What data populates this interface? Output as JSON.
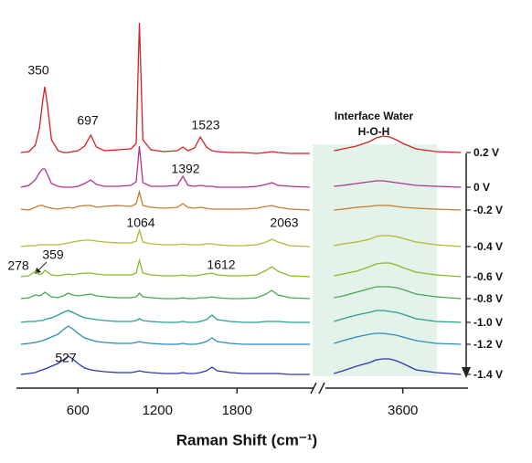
{
  "chart_data": {
    "type": "line",
    "xlabel": "Raman Shift (cm⁻¹)",
    "panel_title": [
      "Interface Water",
      "H-O-H"
    ],
    "xlim": [
      150,
      4110
    ],
    "axis_break": [
      2380,
      3030
    ],
    "xticks": [
      600,
      1200,
      1800,
      3600
    ],
    "ylim": [
      0,
      400
    ],
    "x": [
      170,
      230,
      278,
      310,
      335,
      350,
      370,
      400,
      450,
      490,
      527,
      560,
      600,
      650,
      697,
      740,
      800,
      900,
      1000,
      1040,
      1064,
      1090,
      1150,
      1250,
      1350,
      1392,
      1430,
      1480,
      1523,
      1570,
      1612,
      1650,
      1750,
      1850,
      1950,
      2020,
      2063,
      2110,
      2200,
      2350,
      2380,
      3080,
      3150,
      3250,
      3350,
      3400,
      3450,
      3500,
      3550,
      3600,
      3700,
      3850,
      4040
    ],
    "series": [
      {
        "name": "0.2 V",
        "color": "#d42222",
        "values": [
          248,
          249,
          256,
          275,
          305,
          320,
          300,
          262,
          250,
          248,
          248,
          249,
          250,
          255,
          267,
          254,
          250,
          251,
          252,
          258,
          390,
          262,
          251,
          249,
          250,
          254,
          250,
          253,
          265,
          254,
          250,
          249,
          248,
          248,
          247,
          248,
          249,
          248,
          247,
          247,
          null,
          250,
          252,
          255,
          260,
          264,
          266,
          265,
          262,
          258,
          252,
          249,
          248
        ]
      },
      {
        "name": "0 V",
        "color": "#b0338a",
        "values": [
          210,
          212,
          218,
          226,
          230,
          230,
          224,
          214,
          211,
          210,
          210,
          210,
          211,
          214,
          218,
          213,
          211,
          211,
          212,
          216,
          255,
          215,
          211,
          211,
          212,
          222,
          212,
          211,
          212,
          211,
          211,
          210,
          210,
          210,
          211,
          213,
          215,
          212,
          211,
          210,
          null,
          211,
          212,
          214,
          216,
          217,
          217,
          216,
          215,
          214,
          212,
          211,
          210
        ]
      },
      {
        "name": "-0.2 V",
        "color": "#c87a30",
        "values": [
          186,
          185,
          188,
          190,
          190,
          189,
          188,
          187,
          186,
          187,
          188,
          187,
          189,
          190,
          190,
          188,
          189,
          190,
          189,
          192,
          205,
          190,
          188,
          187,
          188,
          192,
          188,
          187,
          188,
          187,
          186,
          186,
          186,
          186,
          187,
          189,
          190,
          188,
          186,
          185,
          null,
          185,
          186,
          188,
          189,
          190,
          190,
          190,
          189,
          188,
          187,
          186,
          185
        ]
      },
      {
        "name": "-0.4 V",
        "color": "#b4b832",
        "values": [
          145,
          146,
          146,
          147,
          147,
          147,
          147,
          147,
          147,
          148,
          149,
          150,
          151,
          152,
          152,
          151,
          150,
          149,
          149,
          151,
          163,
          150,
          148,
          147,
          147,
          148,
          147,
          147,
          147,
          148,
          148,
          147,
          146,
          146,
          147,
          150,
          153,
          150,
          146,
          145,
          null,
          146,
          148,
          150,
          153,
          156,
          157,
          157,
          156,
          154,
          150,
          147,
          145
        ]
      },
      {
        "name": "-0.6 V",
        "color": "#88bb2a",
        "values": [
          112,
          113,
          118,
          114,
          116,
          119,
          117,
          114,
          113,
          114,
          115,
          114,
          115,
          116,
          116,
          115,
          114,
          114,
          114,
          116,
          130,
          116,
          114,
          113,
          113,
          114,
          113,
          113,
          114,
          115,
          116,
          114,
          113,
          113,
          114,
          119,
          123,
          118,
          113,
          112,
          null,
          113,
          115,
          118,
          123,
          126,
          127,
          127,
          125,
          122,
          117,
          114,
          112
        ]
      },
      {
        "name": "-0.8 V",
        "color": "#48a852",
        "values": [
          88,
          89,
          92,
          91,
          93,
          95,
          93,
          90,
          89,
          91,
          94,
          92,
          91,
          92,
          93,
          91,
          90,
          89,
          89,
          90,
          94,
          90,
          89,
          88,
          88,
          89,
          88,
          88,
          89,
          89,
          90,
          89,
          88,
          88,
          89,
          93,
          97,
          92,
          89,
          88,
          null,
          89,
          91,
          95,
          99,
          101,
          101,
          101,
          100,
          98,
          93,
          90,
          88
        ]
      },
      {
        "name": "-1.0 V",
        "color": "#28a08e",
        "values": [
          62,
          63,
          63,
          64,
          64,
          65,
          66,
          67,
          70,
          73,
          75,
          73,
          70,
          67,
          66,
          65,
          64,
          63,
          63,
          64,
          66,
          64,
          63,
          62,
          62,
          63,
          62,
          62,
          63,
          65,
          70,
          65,
          63,
          62,
          62,
          63,
          63,
          63,
          62,
          62,
          null,
          63,
          66,
          70,
          73,
          75,
          75,
          74,
          73,
          71,
          66,
          63,
          62
        ]
      },
      {
        "name": "-1.2 V",
        "color": "#2a8cba",
        "values": [
          38,
          39,
          40,
          41,
          42,
          43,
          44,
          46,
          49,
          54,
          58,
          55,
          50,
          45,
          43,
          41,
          40,
          39,
          39,
          40,
          41,
          40,
          39,
          38,
          38,
          39,
          38,
          38,
          39,
          41,
          45,
          41,
          39,
          38,
          38,
          38,
          38,
          38,
          38,
          38,
          null,
          39,
          42,
          46,
          49,
          50,
          50,
          49,
          48,
          46,
          42,
          39,
          38
        ]
      },
      {
        "name": "-1.4 V",
        "color": "#2838b2",
        "values": [
          5,
          6,
          7,
          9,
          10,
          11,
          12,
          14,
          17,
          21,
          25,
          22,
          17,
          12,
          10,
          9,
          8,
          7,
          7,
          8,
          9,
          8,
          7,
          6,
          6,
          7,
          6,
          6,
          7,
          9,
          13,
          9,
          7,
          6,
          6,
          6,
          6,
          6,
          5,
          5,
          null,
          6,
          9,
          14,
          18,
          21,
          22,
          22,
          20,
          17,
          10,
          7,
          5
        ]
      }
    ],
    "peak_labels": [
      350,
      697,
      1523,
      1392,
      1064,
      2063,
      278,
      359,
      1612,
      527
    ]
  }
}
